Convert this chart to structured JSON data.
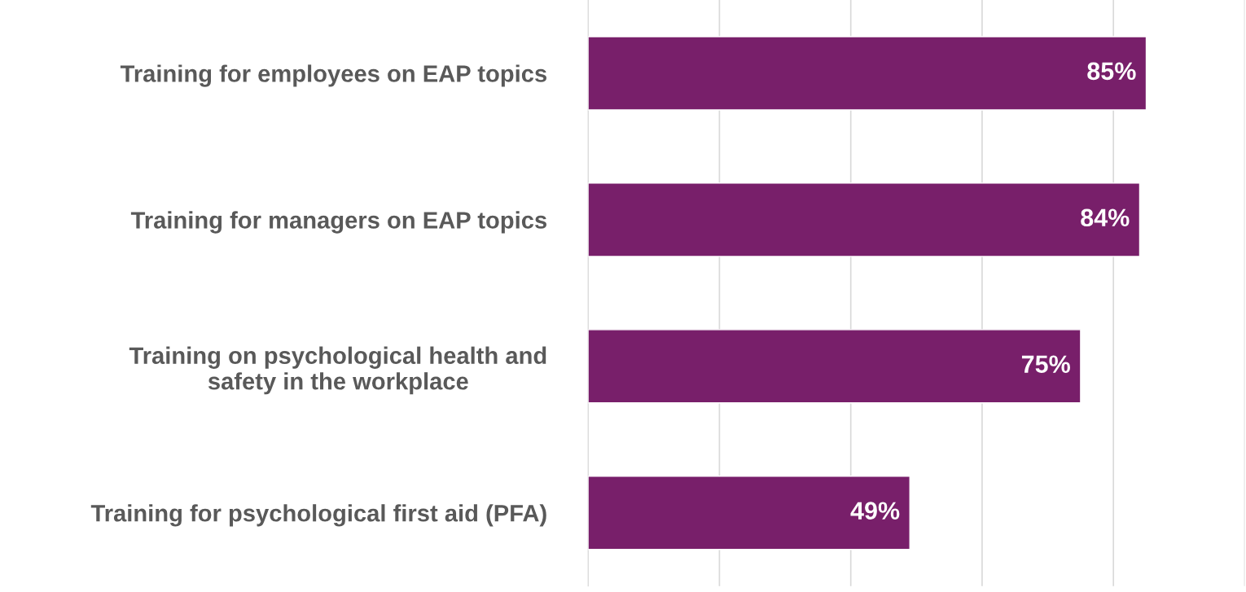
{
  "chart_data": {
    "type": "bar",
    "orientation": "horizontal",
    "categories": [
      "Training for employees on EAP topics",
      "Training for managers on EAP topics",
      "Training on psychological health and\nsafety in the workplace",
      "Training for psychological first aid (PFA)"
    ],
    "values": [
      85,
      84,
      75,
      49
    ],
    "value_labels": [
      "85%",
      "84%",
      "75%",
      "49%"
    ],
    "color": "#781f6a",
    "xlim": [
      0,
      100
    ],
    "xticks": [
      {
        "value": 0,
        "label": null
      },
      {
        "value": 20,
        "label": null
      },
      {
        "value": 40,
        "label": null
      },
      {
        "value": 60,
        "label": null
      },
      {
        "value": 80,
        "label": null
      },
      {
        "value": 100,
        "label": null
      }
    ],
    "tick_labels": "y",
    "grid": "x",
    "legend": false
  }
}
